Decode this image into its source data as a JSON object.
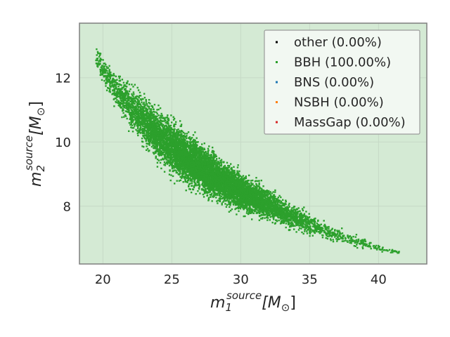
{
  "chart_data": {
    "type": "scatter",
    "x_axis": {
      "label_base": "m",
      "label_sub": "1",
      "label_sup": "source",
      "label_unit": "[M",
      "label_unit_sub": "⊙",
      "label_close": "]",
      "range": [
        18.3,
        43.5
      ],
      "ticks": [
        20,
        25,
        30,
        35,
        40
      ],
      "tick_labels": [
        "20",
        "25",
        "30",
        "35",
        "40"
      ]
    },
    "y_axis": {
      "label_base": "m",
      "label_sub": "2",
      "label_sup": "source",
      "label_unit": "[M",
      "label_unit_sub": "⊙",
      "label_close": "]",
      "range": [
        6.2,
        13.7
      ],
      "ticks": [
        8,
        10,
        12
      ],
      "tick_labels": [
        "8",
        "10",
        "12"
      ]
    },
    "grid": true,
    "legend": {
      "placement": "top-right",
      "entries": [
        {
          "label": "other (0.00%)",
          "color": "#000000"
        },
        {
          "label": "BBH (100.00%)",
          "color": "#2ca02c"
        },
        {
          "label": "BNS (0.00%)",
          "color": "#1f77b4"
        },
        {
          "label": "NSBH (0.00%)",
          "color": "#ff7f0e"
        },
        {
          "label": "MassGap (0.00%)",
          "color": "#d62728"
        }
      ]
    },
    "series": [
      {
        "name": "BBH (100.00%)",
        "color": "#2ca02c",
        "band": {
          "x": [
            19.5,
            21,
            22.5,
            24,
            26,
            28,
            30,
            32,
            34,
            36,
            38,
            40,
            41.5
          ],
          "y_center": [
            12.6,
            11.6,
            10.9,
            10.2,
            9.5,
            8.95,
            8.45,
            8.05,
            7.6,
            7.25,
            6.95,
            6.7,
            6.55
          ],
          "half_width": [
            0.25,
            0.4,
            0.55,
            0.65,
            0.62,
            0.55,
            0.45,
            0.38,
            0.3,
            0.22,
            0.15,
            0.08,
            0.04
          ]
        }
      }
    ],
    "point_count": 9000
  },
  "colors": {
    "plot_background": "#d4ead4",
    "grid": "#c6d9c6",
    "axis_frame": "#7f7f7f",
    "legend_bg": "#f2f8f2"
  }
}
